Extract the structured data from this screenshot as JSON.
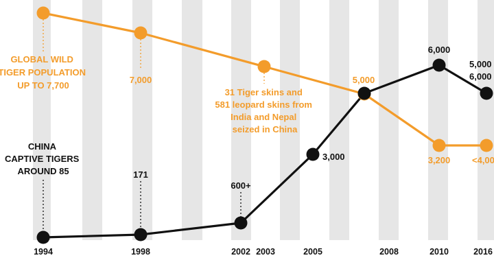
{
  "chart_data": {
    "type": "line",
    "x_ticks": [
      "1994",
      "1998",
      "2002",
      "2003",
      "2005",
      "2008",
      "2010",
      "2016"
    ],
    "series": [
      {
        "color": "#f39c2b",
        "points": [
          {
            "x": "1994",
            "y": 7700
          },
          {
            "x": "1998",
            "y": 7000
          },
          {
            "x": "2003",
            "y": 6100
          },
          {
            "x": "2006",
            "y": 5000
          },
          {
            "x": "2010",
            "y": 3200
          },
          {
            "x": "2016",
            "y": 3200
          }
        ]
      },
      {
        "color": "#111111",
        "points": [
          {
            "x": "1994",
            "y": 85
          },
          {
            "x": "1998",
            "y": 171
          },
          {
            "x": "2002",
            "y": 600
          },
          {
            "x": "2005",
            "y": 3000
          },
          {
            "x": "2006",
            "y": 5000
          },
          {
            "x": "2010",
            "y": 6000
          },
          {
            "x": "2016",
            "y": 5000
          }
        ]
      }
    ],
    "annotations": {
      "global_wild": [
        "GLOBAL WILD",
        "TIGER POPULATION",
        "UP TO 7,700"
      ],
      "v7000": "7,000",
      "skins": [
        "31 Tiger skins and",
        "581 leopard skins from",
        "India and Nepal",
        "seized in China"
      ],
      "v5000_orange": "5,000",
      "v3200": "3,200",
      "v4000": "<4,000",
      "china": [
        "CHINA",
        "CAPTIVE TIGERS",
        "AROUND 85"
      ],
      "v171": "171",
      "v600": "600+",
      "v3000": "3,000",
      "v6000": "6,000",
      "v5000_black": "5,000",
      "v6000_right": "6,000"
    }
  }
}
